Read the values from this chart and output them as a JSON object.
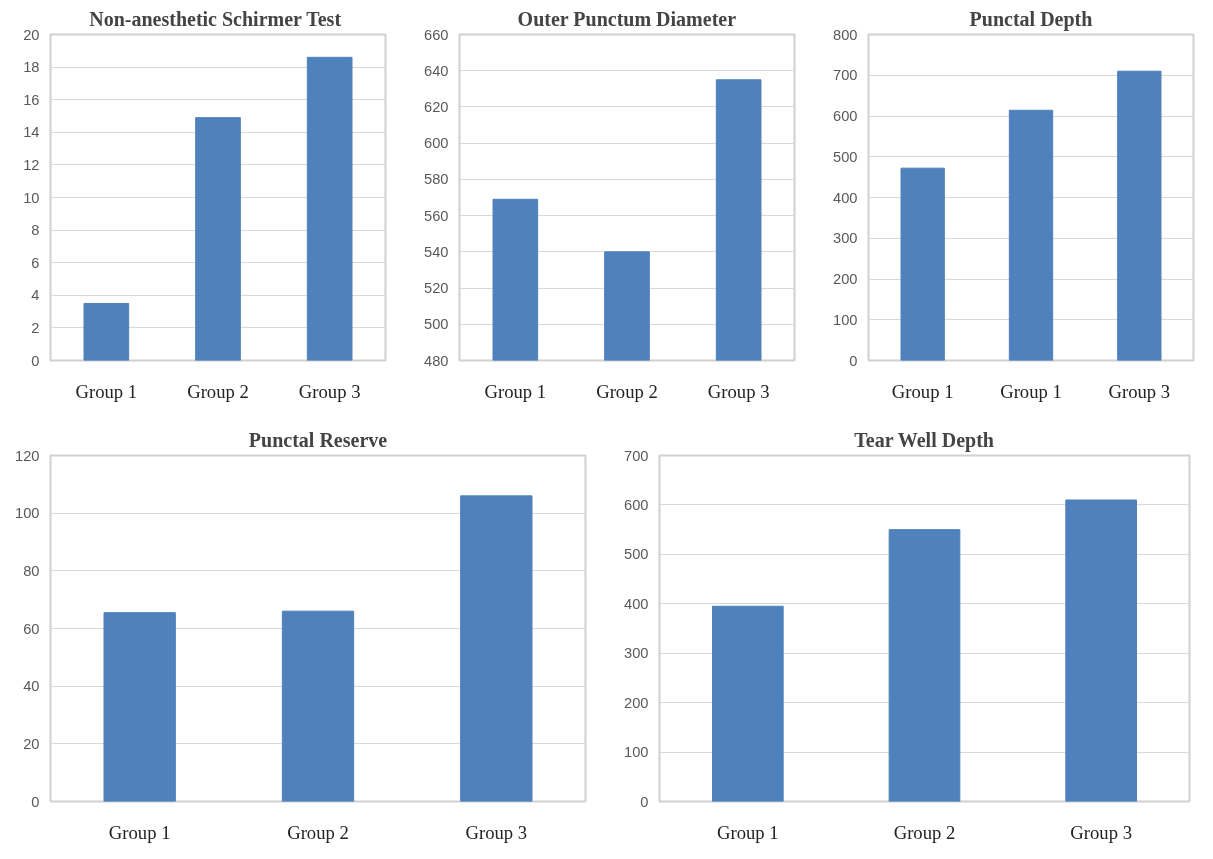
{
  "chart_data": [
    {
      "type": "bar",
      "title": "Non-anesthetic  Schirmer Test",
      "categories": [
        "Group 1",
        "Group 2",
        "Group 3"
      ],
      "values": [
        3.5,
        14.9,
        18.6
      ],
      "color": "#4f81bd",
      "ylim": [
        0,
        20
      ],
      "yticks": [
        0,
        2,
        4,
        6,
        8,
        10,
        12,
        14,
        16,
        18,
        20
      ],
      "grid": "y"
    },
    {
      "type": "bar",
      "title": "Outer Punctum Diameter",
      "categories": [
        "Group 1",
        "Group 2",
        "Group 3"
      ],
      "values": [
        569,
        540,
        635
      ],
      "color": "#4f81bd",
      "ylim": [
        480,
        660
      ],
      "yticks": [
        480,
        500,
        520,
        540,
        560,
        580,
        600,
        620,
        640,
        660
      ],
      "grid": "y"
    },
    {
      "type": "bar",
      "title": "Punctal Depth",
      "categories": [
        "Group 1",
        "Group 1",
        "Group 3"
      ],
      "values": [
        472,
        614,
        710
      ],
      "color": "#4f81bd",
      "ylim": [
        0,
        800
      ],
      "yticks": [
        0,
        100,
        200,
        300,
        400,
        500,
        600,
        700,
        800
      ],
      "grid": "y"
    },
    {
      "type": "bar",
      "title": "Punctal Reserve",
      "categories": [
        "Group 1",
        "Group 2",
        "Group 3"
      ],
      "values": [
        65.5,
        66,
        106
      ],
      "color": "#4f81bd",
      "ylim": [
        0,
        120
      ],
      "yticks": [
        0,
        20,
        40,
        60,
        80,
        100,
        120
      ],
      "grid": "y"
    },
    {
      "type": "bar",
      "title": "Tear Well Depth",
      "categories": [
        "Group 1",
        "Group 2",
        "Group 3"
      ],
      "values": [
        395,
        550,
        610
      ],
      "color": "#4f81bd",
      "ylim": [
        0,
        700
      ],
      "yticks": [
        0,
        100,
        200,
        300,
        400,
        500,
        600,
        700
      ],
      "grid": "y"
    }
  ]
}
